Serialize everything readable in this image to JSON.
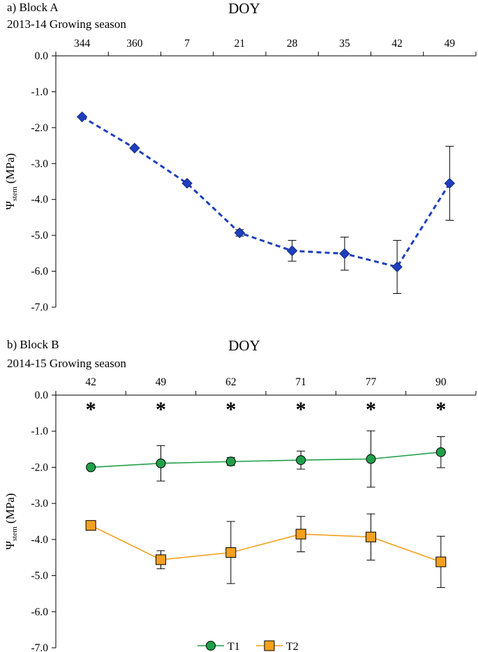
{
  "chart_data": [
    {
      "type": "line",
      "panel_label": "a) Block A",
      "season_label": "2013-14  Growing season",
      "xlabel": "DOY",
      "ylabel_main": "Ψ",
      "ylabel_sub": "stem",
      "ylabel_unit": " (MPa)",
      "categories": [
        "344",
        "360",
        "7",
        "21",
        "28",
        "35",
        "42",
        "49"
      ],
      "ylim": [
        -7.0,
        0.0
      ],
      "yticks": [
        "0.0",
        "-1.0",
        "-2.0",
        "-3.0",
        "-4.0",
        "-5.0",
        "-6.0",
        "-7.0"
      ],
      "grid": false,
      "series": [
        {
          "color": "#1f3fbf",
          "marker": "diamond",
          "line": "dashed",
          "points": [
            {
              "x": 0.0,
              "y": -1.7,
              "err": 0.0
            },
            {
              "x": 1.0,
              "y": -2.57,
              "err": 0.0
            },
            {
              "x": 2.0,
              "y": -3.55,
              "err": 0.0
            },
            {
              "x": 3.0,
              "y": -4.93,
              "err": 0.09
            },
            {
              "x": 4.0,
              "y": -5.43,
              "err": 0.29
            },
            {
              "x": 5.0,
              "y": -5.51,
              "err": 0.46
            },
            {
              "x": 6.0,
              "y": -5.88,
              "err": 0.74
            },
            {
              "x": 7.0,
              "y": -3.55,
              "err": 1.03
            }
          ]
        }
      ]
    },
    {
      "type": "line",
      "panel_label": "b) Block B",
      "season_label": "2014-15  Growing season",
      "xlabel": "DOY",
      "ylabel_main": "Ψ",
      "ylabel_sub": "stem",
      "ylabel_unit": " (MPa)",
      "categories": [
        "42",
        "49",
        "62",
        "71",
        "77",
        "90"
      ],
      "ylim": [
        -7.0,
        0.0
      ],
      "yticks": [
        "0.0",
        "-1.0",
        "-2.0",
        "-3.0",
        "-4.0",
        "-5.0",
        "-6.0",
        "-7.0"
      ],
      "grid": false,
      "significance": [
        "*",
        "*",
        "*",
        "*",
        "*",
        "*"
      ],
      "series": [
        {
          "name": "T1",
          "color": "#21a04a",
          "marker": "circle",
          "line": "solid",
          "points": [
            {
              "x": 0.0,
              "y": -2.0,
              "err": 0.0
            },
            {
              "x": 1.0,
              "y": -1.89,
              "err": 0.49
            },
            {
              "x": 2.0,
              "y": -1.84,
              "err": 0.11
            },
            {
              "x": 3.0,
              "y": -1.8,
              "err": 0.25
            },
            {
              "x": 4.0,
              "y": -1.77,
              "err": 0.78
            },
            {
              "x": 5.0,
              "y": -1.58,
              "err": 0.43
            }
          ]
        },
        {
          "name": "T2",
          "color": "#f5a01e",
          "marker": "square",
          "line": "solid",
          "points": [
            {
              "x": 0.0,
              "y": -3.61,
              "err": 0.0
            },
            {
              "x": 1.0,
              "y": -4.56,
              "err": 0.25
            },
            {
              "x": 2.0,
              "y": -4.36,
              "err": 0.86
            },
            {
              "x": 3.0,
              "y": -3.85,
              "err": 0.49
            },
            {
              "x": 4.0,
              "y": -3.93,
              "err": 0.64
            },
            {
              "x": 5.0,
              "y": -4.62,
              "err": 0.71
            }
          ]
        }
      ],
      "legend": {
        "position": "bottom-center"
      }
    }
  ]
}
